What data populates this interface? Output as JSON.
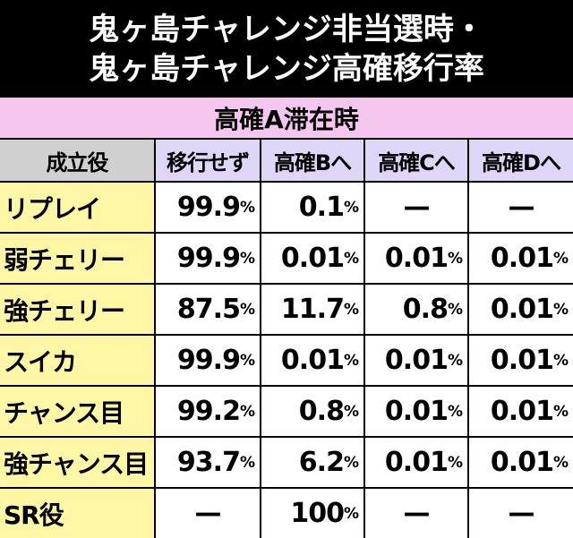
{
  "title": [
    "鬼ヶ島チャレンジ非当選時・",
    "鬼ヶ島チャレンジ高確移行率"
  ],
  "table": {
    "caption": "高確A滞在時",
    "header": [
      "成立役",
      "移行せず",
      "高確Bへ",
      "高確Cへ",
      "高確Dへ"
    ],
    "rows": [
      [
        "リプレイ",
        "99.9%",
        "0.1%",
        "—",
        "—"
      ],
      [
        "弱チェリー",
        "99.9%",
        "0.01%",
        "0.01%",
        "0.01%"
      ],
      [
        "強チェリー",
        "87.5%",
        "11.7%",
        "0.8%",
        "0.01%"
      ],
      [
        "スイカ",
        "99.9%",
        "0.01%",
        "0.01%",
        "0.01%"
      ],
      [
        "チャンス目",
        "99.2%",
        "0.8%",
        "0.01%",
        "0.01%"
      ],
      [
        "強チャンス目",
        "93.7%",
        "6.2%",
        "0.01%",
        "0.01%"
      ],
      [
        "SR役",
        "—",
        "100%",
        "—",
        "—"
      ]
    ]
  }
}
